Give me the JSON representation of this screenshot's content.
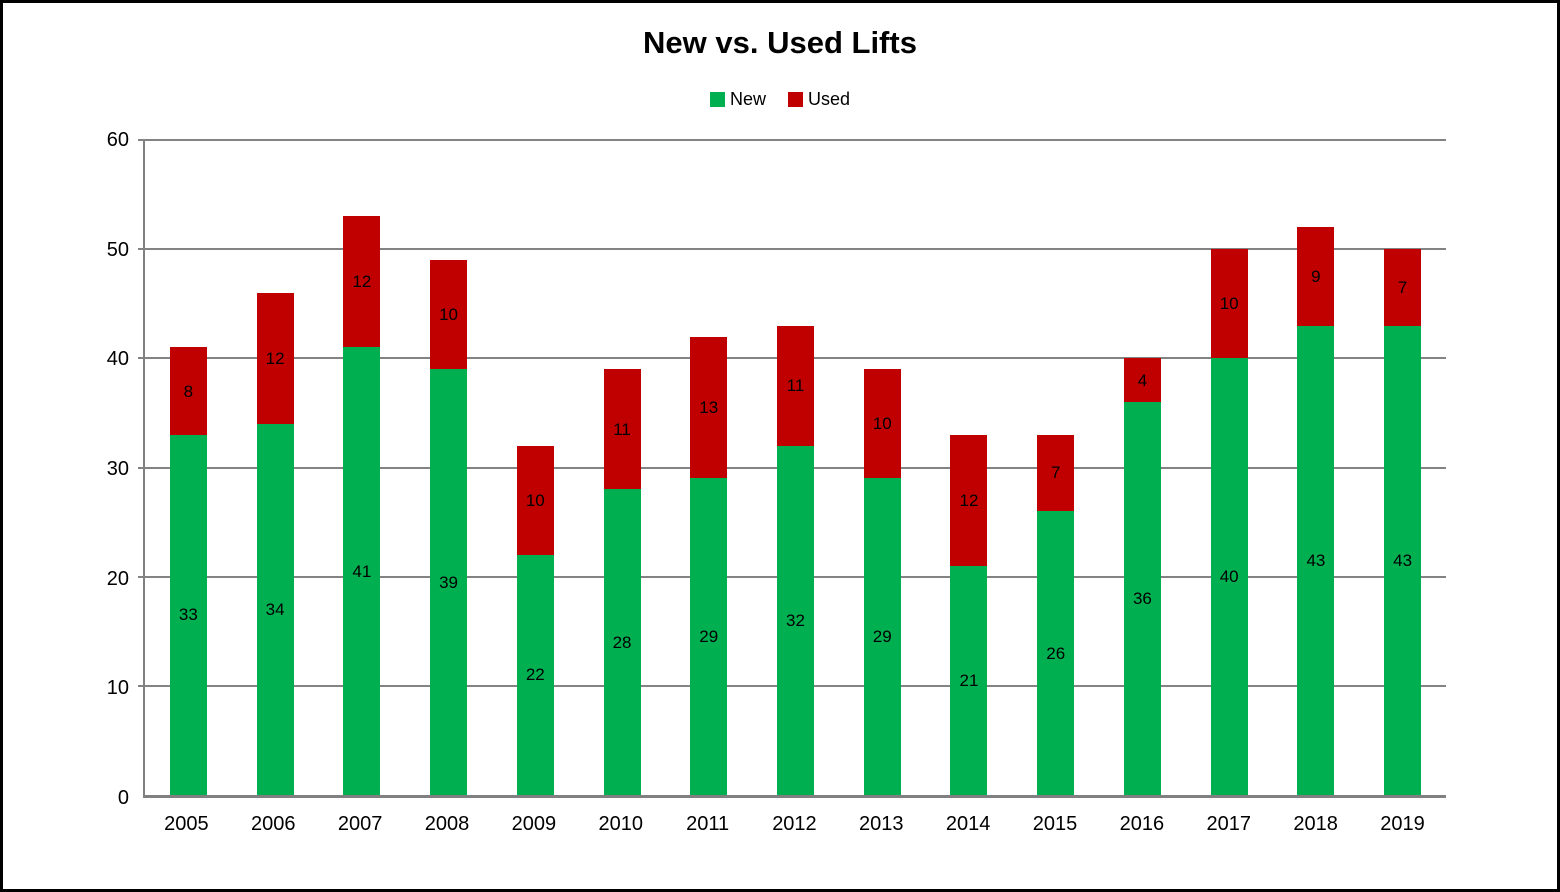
{
  "title": "New vs. Used Lifts",
  "legend": {
    "items": [
      {
        "label": "New",
        "color": "#00B050"
      },
      {
        "label": "Used",
        "color": "#C00000"
      }
    ]
  },
  "chart_data": {
    "type": "bar",
    "stacked": true,
    "title": "New vs. Used Lifts",
    "categories": [
      "2005",
      "2006",
      "2007",
      "2008",
      "2009",
      "2010",
      "2011",
      "2012",
      "2013",
      "2014",
      "2015",
      "2016",
      "2017",
      "2018",
      "2019"
    ],
    "series": [
      {
        "name": "New",
        "color": "#00B050",
        "values": [
          33,
          34,
          41,
          39,
          22,
          28,
          29,
          32,
          29,
          21,
          26,
          36,
          40,
          43,
          43
        ]
      },
      {
        "name": "Used",
        "color": "#C00000",
        "values": [
          8,
          12,
          12,
          10,
          10,
          11,
          13,
          11,
          10,
          12,
          7,
          4,
          10,
          9,
          7
        ]
      }
    ],
    "totals": [
      41,
      46,
      53,
      49,
      32,
      39,
      42,
      43,
      39,
      33,
      33,
      40,
      50,
      52,
      50
    ],
    "xlabel": "",
    "ylabel": "",
    "ylim": [
      0,
      60
    ],
    "yticks": [
      0,
      10,
      20,
      30,
      40,
      50,
      60
    ],
    "grid": true,
    "gridline_color": "#838383",
    "axis_color": "#808080",
    "legend_position": "top",
    "data_labels": true
  }
}
